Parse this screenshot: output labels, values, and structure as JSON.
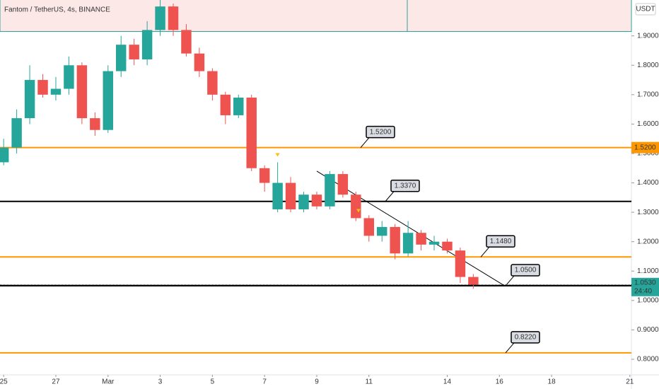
{
  "chart_data": {
    "type": "candlestick",
    "title": "Fantom / TetherUS, 4s, BINANCE",
    "currency": "USDT",
    "x": [
      0,
      0.5,
      1,
      1.5,
      2,
      2.5,
      3,
      3.5,
      4,
      4.5,
      5,
      5.5,
      6,
      6.5,
      7,
      7.5,
      8,
      8.5,
      9,
      9.5,
      10,
      10.5,
      11,
      11.5,
      12,
      12.5,
      13,
      13.5,
      14,
      14.5,
      15,
      15.5,
      16,
      16.5,
      17,
      17.5,
      18
    ],
    "open": [
      1.47,
      1.52,
      1.62,
      1.75,
      1.7,
      1.72,
      1.8,
      1.62,
      1.58,
      1.78,
      1.87,
      1.82,
      1.92,
      2.0,
      1.92,
      1.84,
      1.78,
      1.7,
      1.63,
      1.69,
      1.45,
      1.31,
      1.4,
      1.31,
      1.36,
      1.32,
      1.43,
      1.36,
      1.28,
      1.22,
      1.25,
      1.16,
      1.23,
      1.19,
      1.2,
      1.17,
      1.08
    ],
    "high": [
      1.55,
      1.65,
      1.8,
      1.77,
      1.76,
      1.83,
      1.81,
      1.64,
      1.8,
      1.9,
      1.89,
      1.95,
      2.03,
      2.01,
      1.94,
      1.86,
      1.79,
      1.71,
      1.7,
      1.7,
      1.46,
      1.47,
      1.42,
      1.37,
      1.37,
      1.44,
      1.44,
      1.37,
      1.29,
      1.27,
      1.26,
      1.27,
      1.24,
      1.22,
      1.21,
      1.18,
      1.09
    ],
    "low": [
      1.46,
      1.5,
      1.6,
      1.69,
      1.68,
      1.7,
      1.6,
      1.56,
      1.57,
      1.76,
      1.8,
      1.8,
      1.9,
      1.9,
      1.83,
      1.76,
      1.68,
      1.6,
      1.62,
      1.44,
      1.37,
      1.3,
      1.3,
      1.3,
      1.31,
      1.31,
      1.35,
      1.27,
      1.2,
      1.2,
      1.14,
      1.15,
      1.17,
      1.17,
      1.16,
      1.06,
      1.04
    ],
    "close": [
      1.52,
      1.62,
      1.75,
      1.7,
      1.72,
      1.8,
      1.62,
      1.58,
      1.78,
      1.87,
      1.82,
      1.92,
      2.0,
      1.92,
      1.84,
      1.78,
      1.7,
      1.63,
      1.69,
      1.45,
      1.4,
      1.4,
      1.31,
      1.36,
      1.32,
      1.43,
      1.36,
      1.28,
      1.22,
      1.25,
      1.16,
      1.23,
      1.19,
      1.2,
      1.17,
      1.08,
      1.053
    ],
    "up_color": "#26a69a",
    "down_color": "#ef5350",
    "xlim": [
      -0.14,
      24.06
    ],
    "ylim": [
      0.747,
      2.022
    ],
    "xticks": [
      {
        "value": 0,
        "label": "25"
      },
      {
        "value": 2,
        "label": "27"
      },
      {
        "value": 4,
        "label": "Mar"
      },
      {
        "value": 6,
        "label": "3"
      },
      {
        "value": 8,
        "label": "5"
      },
      {
        "value": 10,
        "label": "7"
      },
      {
        "value": 12,
        "label": "9"
      },
      {
        "value": 14,
        "label": "11"
      },
      {
        "value": 17,
        "label": "14"
      },
      {
        "value": 19,
        "label": "16"
      },
      {
        "value": 21,
        "label": "18"
      },
      {
        "value": 24,
        "label": "21"
      }
    ],
    "yticks": [
      {
        "value": 0.8,
        "label": "0.8000"
      },
      {
        "value": 0.9,
        "label": "0.9000"
      },
      {
        "value": 1.0,
        "label": "1.0000"
      },
      {
        "value": 1.1,
        "label": "1.1000"
      },
      {
        "value": 1.2,
        "label": "1.2000"
      },
      {
        "value": 1.3,
        "label": "1.3000"
      },
      {
        "value": 1.4,
        "label": "1.4000"
      },
      {
        "value": 1.5,
        "label": "1.5000"
      },
      {
        "value": 1.6,
        "label": "1.6000"
      },
      {
        "value": 1.7,
        "label": "1.7000"
      },
      {
        "value": 1.8,
        "label": "1.8000"
      },
      {
        "value": 1.9,
        "label": "1.9000"
      }
    ],
    "levels": [
      {
        "value": 1.52,
        "label": "1.5200",
        "color": "#ff9800"
      },
      {
        "value": 1.337,
        "label": "1.3370",
        "color": "#000000"
      },
      {
        "value": 1.148,
        "label": "1.1480",
        "color": "#ff9800"
      },
      {
        "value": 1.05,
        "label": "1.0500",
        "color": "#000000"
      },
      {
        "value": 0.822,
        "label": "0.8220",
        "color": "#ff9800"
      }
    ],
    "zone": [
      1.915,
      2.03
    ],
    "trendline": {
      "x": [
        12,
        19.2
      ],
      "y": [
        1.44,
        1.05
      ]
    },
    "markers": {
      "x": [
        10.5,
        13.6
      ],
      "y": [
        1.47,
        1.28
      ],
      "color": "#f5c211"
    },
    "current_price": {
      "value": 1.053,
      "label": "1.0530",
      "countdown": "24:40"
    }
  }
}
